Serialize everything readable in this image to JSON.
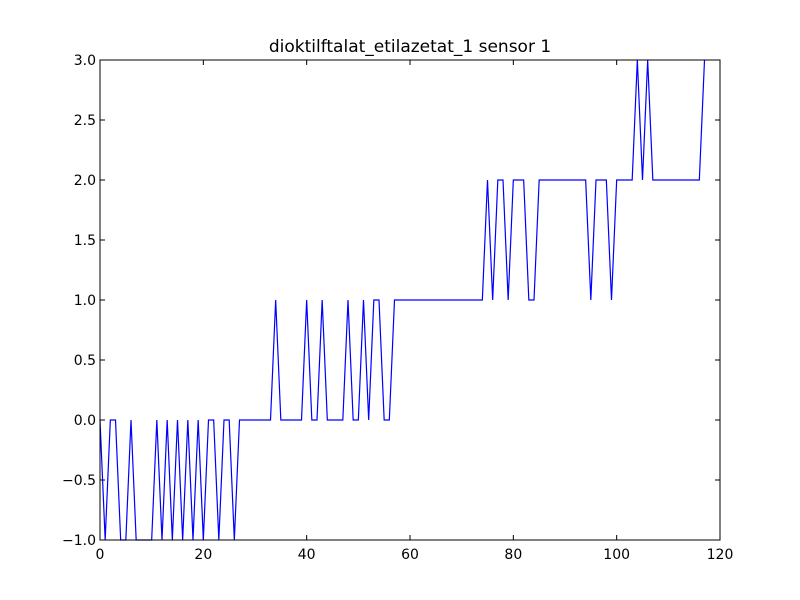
{
  "chart_data": {
    "type": "line",
    "title": "dioktilftalat_etilazetat_1 sensor 1",
    "xlabel": "",
    "ylabel": "",
    "xlim": [
      0,
      120
    ],
    "ylim": [
      -1.0,
      3.0
    ],
    "xticks": [
      0,
      20,
      40,
      60,
      80,
      100,
      120
    ],
    "xtick_labels": [
      "0",
      "20",
      "40",
      "60",
      "80",
      "100",
      "120"
    ],
    "yticks": [
      -1.0,
      -0.5,
      0.0,
      0.5,
      1.0,
      1.5,
      2.0,
      2.5,
      3.0
    ],
    "ytick_labels": [
      "−1.0",
      "−0.5",
      "0.0",
      "0.5",
      "1.0",
      "1.5",
      "2.0",
      "2.5",
      "3.0"
    ],
    "grid": false,
    "series": [
      {
        "color": "#0000ff",
        "x": [
          0,
          1,
          2,
          3,
          4,
          5,
          6,
          7,
          8,
          9,
          10,
          11,
          12,
          13,
          14,
          15,
          16,
          17,
          18,
          19,
          20,
          21,
          22,
          23,
          24,
          25,
          26,
          27,
          28,
          29,
          30,
          31,
          32,
          33,
          34,
          35,
          36,
          37,
          38,
          39,
          40,
          41,
          42,
          43,
          44,
          45,
          46,
          47,
          48,
          49,
          50,
          51,
          52,
          53,
          54,
          55,
          56,
          57,
          58,
          59,
          60,
          61,
          62,
          63,
          64,
          65,
          66,
          67,
          68,
          69,
          70,
          71,
          72,
          73,
          74,
          75,
          76,
          77,
          78,
          79,
          80,
          81,
          82,
          83,
          84,
          85,
          86,
          87,
          88,
          89,
          90,
          91,
          92,
          93,
          94,
          95,
          96,
          97,
          98,
          99,
          100,
          101,
          102,
          103,
          104,
          105,
          106,
          107,
          108,
          109,
          110,
          111,
          112,
          113,
          114,
          115,
          116,
          117
        ],
        "y": [
          0,
          -1,
          0,
          0,
          -1,
          -1,
          0,
          -1,
          -1,
          -1,
          -1,
          0,
          -1,
          0,
          -1,
          0,
          -1,
          0,
          -1,
          0,
          -1,
          0,
          0,
          -1,
          0,
          0,
          -1,
          0,
          0,
          0,
          0,
          0,
          0,
          0,
          1,
          0,
          0,
          0,
          0,
          0,
          1,
          0,
          0,
          1,
          0,
          0,
          0,
          0,
          1,
          0,
          0,
          1,
          0,
          1,
          1,
          0,
          0,
          1,
          1,
          1,
          1,
          1,
          1,
          1,
          1,
          1,
          1,
          1,
          1,
          1,
          1,
          1,
          1,
          1,
          1,
          2,
          1,
          2,
          2,
          1,
          2,
          2,
          2,
          1,
          1,
          2,
          2,
          2,
          2,
          2,
          2,
          2,
          2,
          2,
          2,
          1,
          2,
          2,
          2,
          1,
          2,
          2,
          2,
          2,
          3,
          2,
          3,
          2,
          2,
          2,
          2,
          2,
          2,
          2,
          2,
          2,
          2,
          3
        ]
      }
    ]
  }
}
